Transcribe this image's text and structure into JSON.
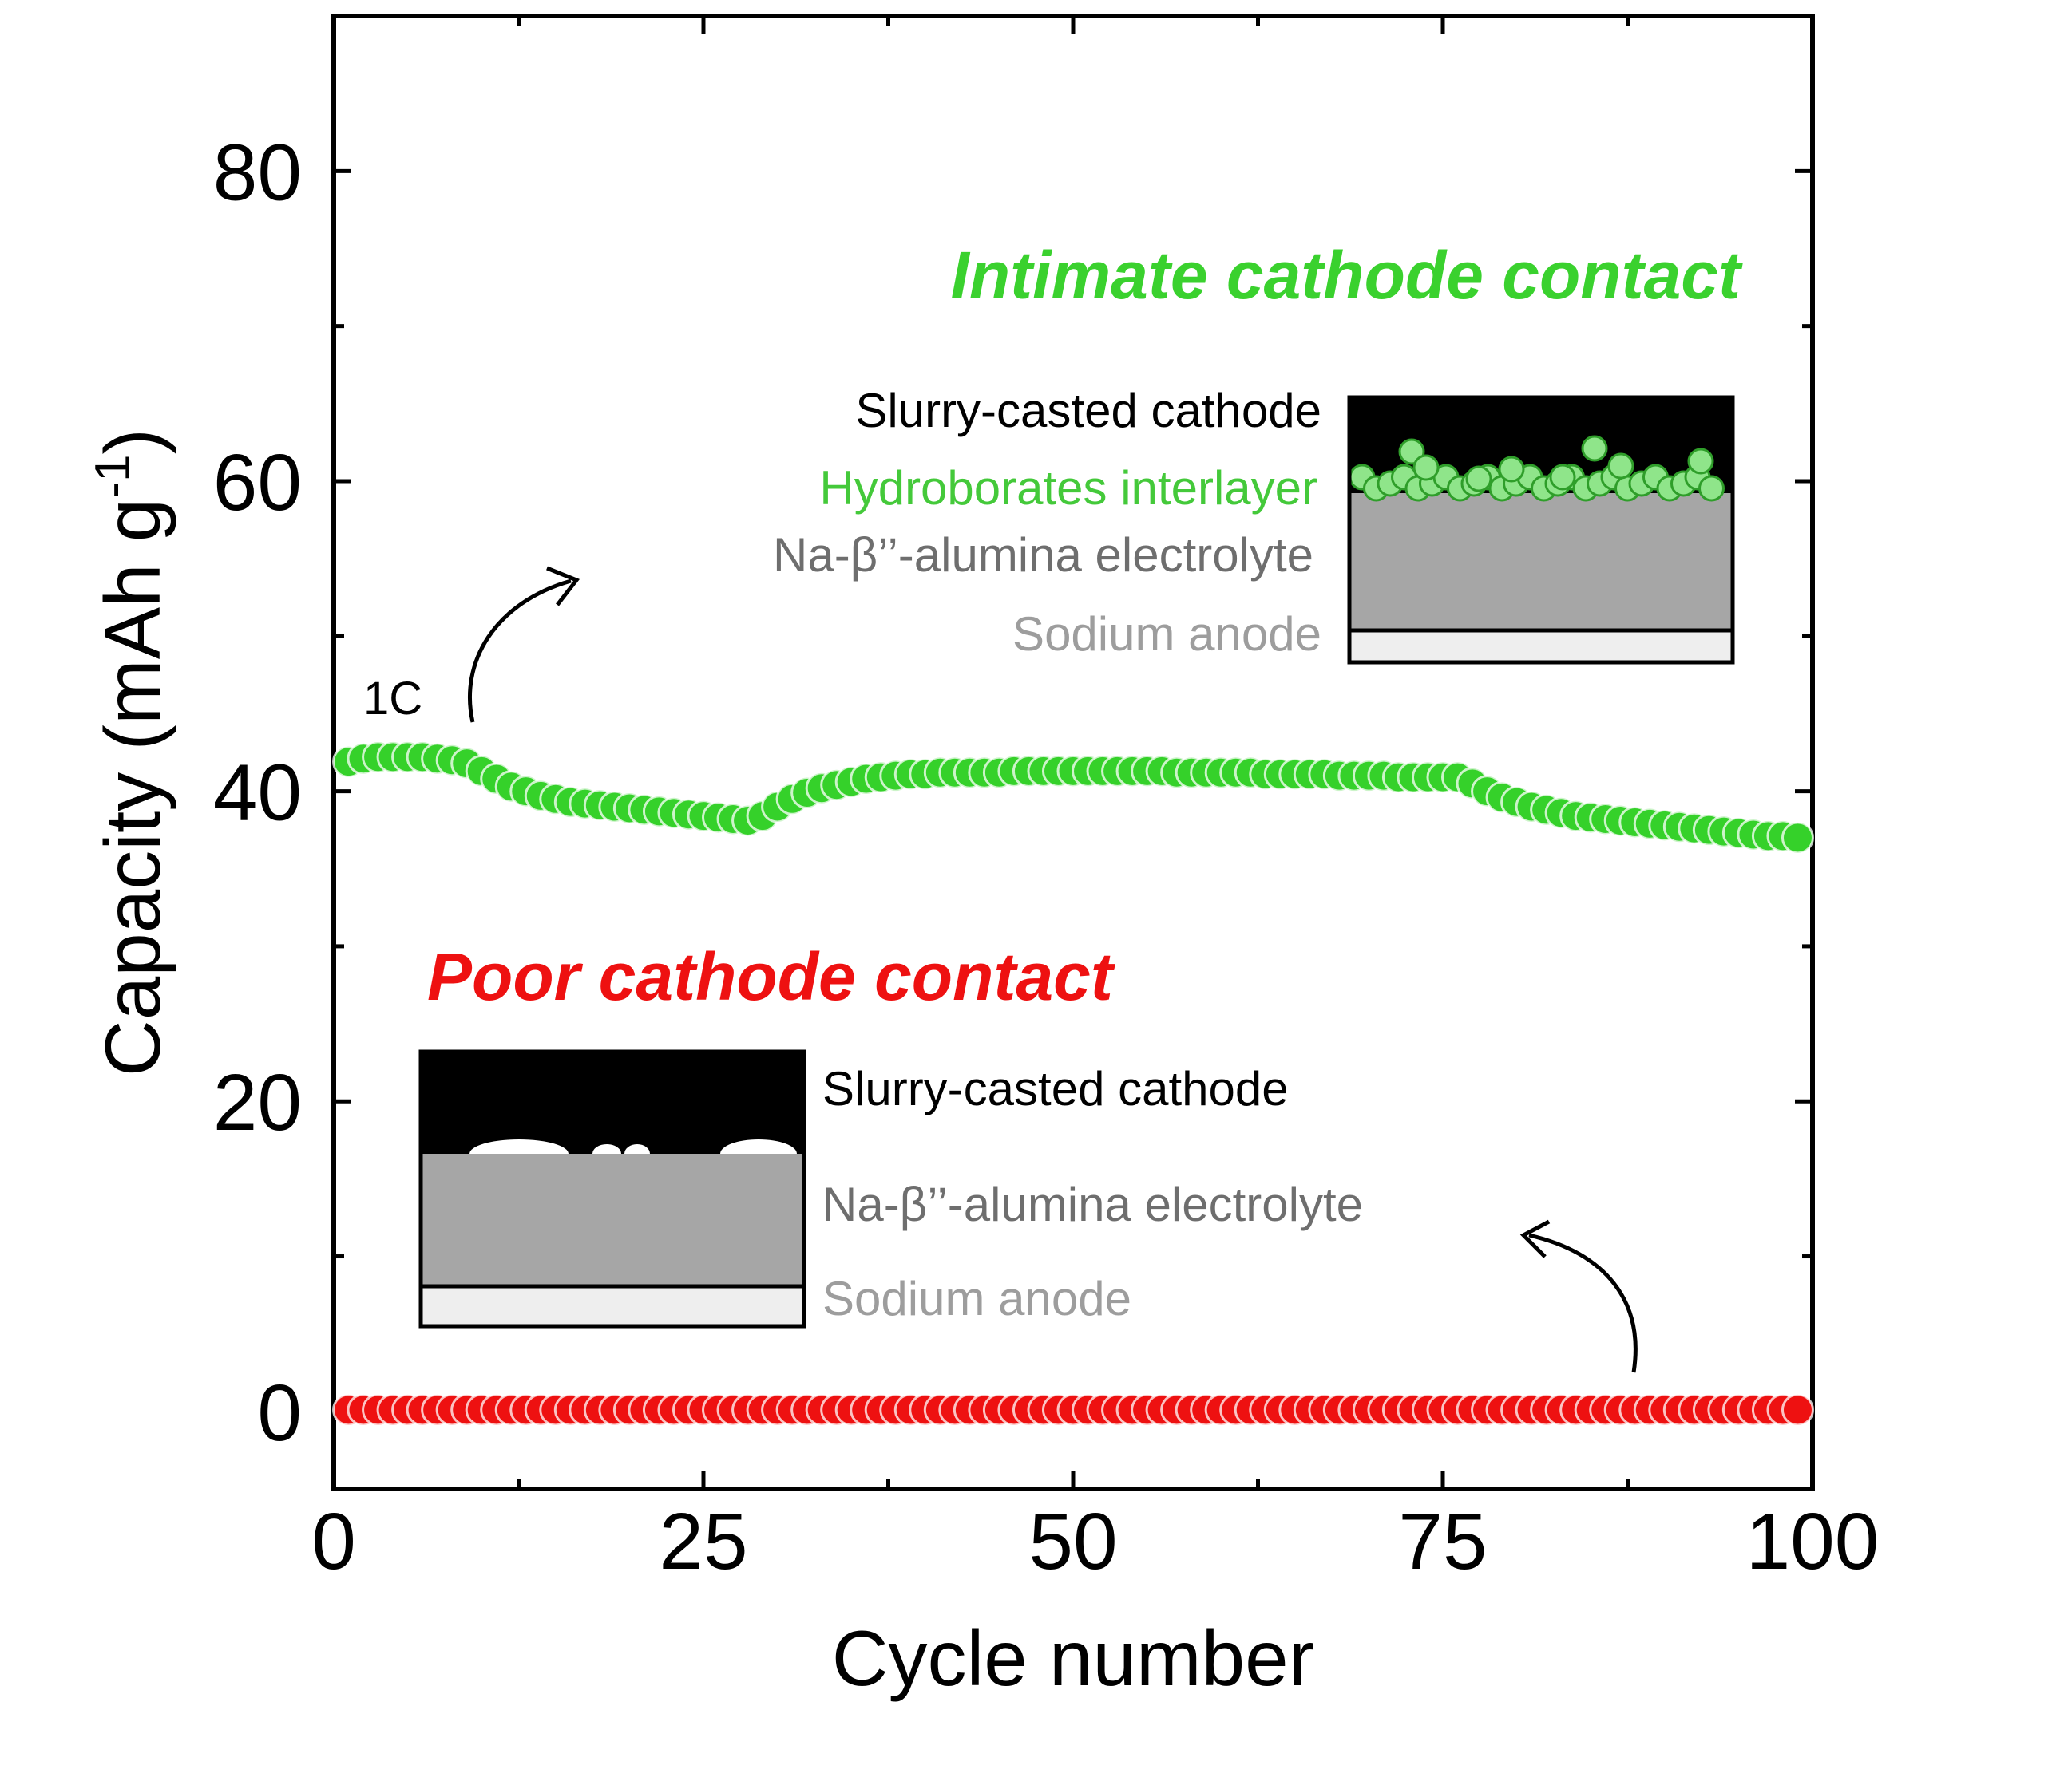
{
  "chart_data": {
    "type": "scatter",
    "xlabel": "Cycle number",
    "ylabel": "Capacity (mAh g",
    "ylabel_sup": "-1",
    "ylabel_close": ")",
    "xlim": [
      0,
      100
    ],
    "ylim": [
      -5,
      90
    ],
    "x_ticks": [
      0,
      25,
      50,
      75,
      100
    ],
    "y_ticks": [
      0,
      20,
      40,
      60,
      80
    ],
    "x_tick_labels": [
      "0",
      "25",
      "50",
      "75",
      "100"
    ],
    "y_tick_labels": [
      "0",
      "20",
      "40",
      "60",
      "80"
    ],
    "grid": false,
    "legend": "none",
    "series": [
      {
        "key": "intimate",
        "color": "#35d12a",
        "x": [
          1,
          2,
          3,
          4,
          5,
          6,
          7,
          8,
          9,
          10,
          11,
          12,
          13,
          14,
          15,
          16,
          17,
          18,
          19,
          20,
          21,
          22,
          23,
          24,
          25,
          26,
          27,
          28,
          29,
          30,
          31,
          32,
          33,
          34,
          35,
          36,
          37,
          38,
          39,
          40,
          41,
          42,
          43,
          44,
          45,
          46,
          47,
          48,
          49,
          50,
          51,
          52,
          53,
          54,
          55,
          56,
          57,
          58,
          59,
          60,
          61,
          62,
          63,
          64,
          65,
          66,
          67,
          68,
          69,
          70,
          71,
          72,
          73,
          74,
          75,
          76,
          77,
          78,
          79,
          80,
          81,
          82,
          83,
          84,
          85,
          86,
          87,
          88,
          89,
          90,
          91,
          92,
          93,
          94,
          95,
          96,
          97,
          98,
          99
        ],
        "y": [
          41.9,
          42.1,
          42.2,
          42.2,
          42.2,
          42.2,
          42.1,
          42.0,
          41.8,
          41.3,
          40.8,
          40.3,
          40.0,
          39.7,
          39.5,
          39.3,
          39.2,
          39.1,
          39.0,
          38.9,
          38.8,
          38.7,
          38.6,
          38.5,
          38.4,
          38.3,
          38.2,
          38.1,
          38.4,
          39.0,
          39.5,
          39.9,
          40.2,
          40.4,
          40.6,
          40.8,
          40.9,
          41.0,
          41.1,
          41.1,
          41.2,
          41.2,
          41.2,
          41.2,
          41.2,
          41.3,
          41.3,
          41.3,
          41.3,
          41.3,
          41.3,
          41.3,
          41.3,
          41.3,
          41.3,
          41.3,
          41.2,
          41.2,
          41.2,
          41.2,
          41.2,
          41.2,
          41.1,
          41.1,
          41.1,
          41.1,
          41.1,
          41.0,
          41.0,
          41.0,
          41.0,
          40.9,
          40.9,
          40.9,
          40.9,
          40.9,
          40.5,
          40.0,
          39.6,
          39.3,
          39.0,
          38.8,
          38.6,
          38.4,
          38.3,
          38.2,
          38.1,
          38.0,
          37.9,
          37.8,
          37.7,
          37.6,
          37.5,
          37.4,
          37.3,
          37.2,
          37.1,
          37.1,
          37.0
        ]
      },
      {
        "key": "poor",
        "color": "#ee1111",
        "x": [
          1,
          2,
          3,
          4,
          5,
          6,
          7,
          8,
          9,
          10,
          11,
          12,
          13,
          14,
          15,
          16,
          17,
          18,
          19,
          20,
          21,
          22,
          23,
          24,
          25,
          26,
          27,
          28,
          29,
          30,
          31,
          32,
          33,
          34,
          35,
          36,
          37,
          38,
          39,
          40,
          41,
          42,
          43,
          44,
          45,
          46,
          47,
          48,
          49,
          50,
          51,
          52,
          53,
          54,
          55,
          56,
          57,
          58,
          59,
          60,
          61,
          62,
          63,
          64,
          65,
          66,
          67,
          68,
          69,
          70,
          71,
          72,
          73,
          74,
          75,
          76,
          77,
          78,
          79,
          80,
          81,
          82,
          83,
          84,
          85,
          86,
          87,
          88,
          89,
          90,
          91,
          92,
          93,
          94,
          95,
          96,
          97,
          98,
          99
        ],
        "y": [
          0.1,
          0.1,
          0.1,
          0.1,
          0.1,
          0.1,
          0.1,
          0.1,
          0.1,
          0.1,
          0.1,
          0.1,
          0.1,
          0.1,
          0.1,
          0.1,
          0.1,
          0.1,
          0.1,
          0.1,
          0.1,
          0.1,
          0.1,
          0.1,
          0.1,
          0.1,
          0.1,
          0.1,
          0.1,
          0.1,
          0.1,
          0.1,
          0.1,
          0.1,
          0.1,
          0.1,
          0.1,
          0.1,
          0.1,
          0.1,
          0.1,
          0.1,
          0.1,
          0.1,
          0.1,
          0.1,
          0.1,
          0.1,
          0.1,
          0.1,
          0.1,
          0.1,
          0.1,
          0.1,
          0.1,
          0.1,
          0.1,
          0.1,
          0.1,
          0.1,
          0.1,
          0.1,
          0.1,
          0.1,
          0.1,
          0.1,
          0.1,
          0.1,
          0.1,
          0.1,
          0.1,
          0.1,
          0.1,
          0.1,
          0.1,
          0.1,
          0.1,
          0.1,
          0.1,
          0.1,
          0.1,
          0.1,
          0.1,
          0.1,
          0.1,
          0.1,
          0.1,
          0.1,
          0.1,
          0.1,
          0.1,
          0.1,
          0.1,
          0.1,
          0.1,
          0.1,
          0.1,
          0.1,
          0.1
        ]
      }
    ],
    "annotations": {
      "intimate_title": "Intimate cathode contact",
      "poor_title": "Poor cathode contact",
      "rate_label": "1C",
      "intimate_inset": {
        "cathode": "Slurry-casted cathode",
        "interlayer": "Hydroborates interlayer",
        "electrolyte": "Na-β’’-alumina electrolyte",
        "anode": "Sodium anode"
      },
      "poor_inset": {
        "cathode": "Slurry-casted cathode",
        "electrolyte": "Na-β’’-alumina electrolyte",
        "anode": "Sodium anode"
      }
    },
    "colors": {
      "green": "#35d12a",
      "red": "#ee1111",
      "green_text": "#3ad12e",
      "red_text": "#ee1111",
      "interlayer_text": "#44c93a",
      "electrolyte_text": "#6e6e6e",
      "anode_text": "#9d9d9d",
      "electrolyte_fill": "#a6a6a6",
      "anode_fill": "#eeeeee",
      "particle_fill": "#8fe58a"
    }
  }
}
